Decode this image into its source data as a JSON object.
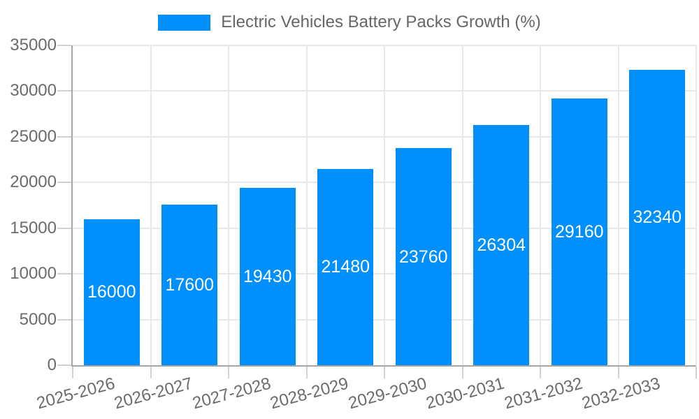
{
  "chart_data": {
    "type": "bar",
    "title": "Electric Vehicles Battery Packs Growth (%)",
    "categories": [
      "2025-2026",
      "2026-2027",
      "2027-2028",
      "2028-2029",
      "2029-2030",
      "2030-2031",
      "2031-2032",
      "2032-2033"
    ],
    "series": [
      {
        "name": "Electric Vehicles Battery Packs Growth (%)",
        "values": [
          16000,
          17600,
          19430,
          21480,
          23760,
          26304,
          29160,
          32340
        ]
      }
    ],
    "values": [
      16000,
      17600,
      19430,
      21480,
      23760,
      26304,
      29160,
      32340
    ],
    "value_labels": [
      "16000",
      "17600",
      "19430",
      "21480",
      "23760",
      "26304",
      "29160",
      "32340"
    ],
    "xlabel": "",
    "ylabel": "",
    "ylim": [
      0,
      35000
    ],
    "ytick_step": 5000,
    "yticks": [
      0,
      5000,
      10000,
      15000,
      20000,
      25000,
      30000,
      35000
    ],
    "grid": true,
    "legend_position": "top",
    "x_label_rotation_deg": -15
  },
  "legend": {
    "label": "Electric Vehicles Battery Packs Growth (%)"
  },
  "colors": {
    "bar": "#008FFB",
    "bar_value_text": "#ffffff",
    "axis_line": "#a6a6a6",
    "gridline": "#e8e8e8",
    "tick": "#d2d2d2",
    "axis_text": "#6b6b6b",
    "legend_text": "#666666"
  }
}
